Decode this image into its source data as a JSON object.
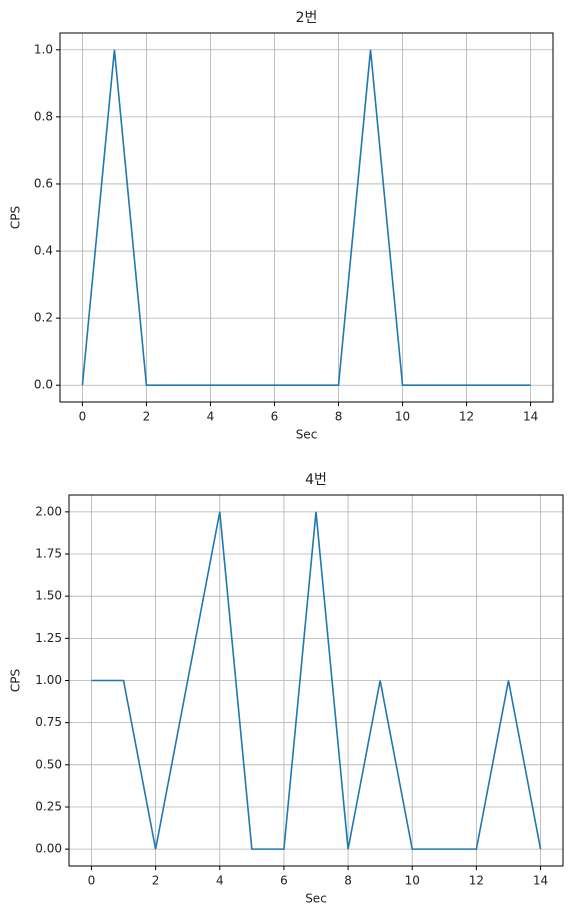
{
  "chart_data": [
    {
      "type": "line",
      "title": "2번",
      "x_label": "Sec",
      "y_label": "CPS",
      "x": [
        0,
        1,
        2,
        3,
        4,
        5,
        6,
        7,
        8,
        9,
        10,
        11,
        12,
        13,
        14
      ],
      "values": [
        0,
        1,
        0,
        0,
        0,
        0,
        0,
        0,
        0,
        1,
        0,
        0,
        0,
        0,
        0
      ],
      "color": "#1f77b4",
      "xlim": [
        -0.7,
        14.7
      ],
      "xticks": [
        0,
        2,
        4,
        6,
        8,
        10,
        12,
        14
      ],
      "ylim": [
        -0.05,
        1.05
      ],
      "yticks": [
        {
          "value": 0,
          "label": "0.0"
        },
        0.2,
        0.4,
        0.6,
        0.8,
        {
          "value": 1,
          "label": "1.0"
        }
      ],
      "grid": true
    },
    {
      "type": "line",
      "title": "4번",
      "x_label": "Sec",
      "y_label": "CPS",
      "x": [
        0,
        1,
        2,
        3,
        4,
        5,
        6,
        7,
        8,
        9,
        10,
        11,
        12,
        13,
        14
      ],
      "values": [
        1,
        1,
        0,
        1,
        2,
        0,
        0,
        2,
        0,
        1,
        0,
        0,
        0,
        1,
        0
      ],
      "color": "#1f77b4",
      "xlim": [
        -0.7,
        14.7
      ],
      "xticks": [
        0,
        2,
        4,
        6,
        8,
        10,
        12,
        14
      ],
      "ylim": [
        -0.1,
        2.1
      ],
      "yticks": [
        {
          "value": 0,
          "label": "0.00"
        },
        0.25,
        {
          "value": 0.5,
          "label": "0.50"
        },
        0.75,
        {
          "value": 1,
          "label": "1.00"
        },
        1.25,
        {
          "value": 1.5,
          "label": "1.50"
        },
        1.75,
        {
          "value": 2,
          "label": "2.00"
        }
      ],
      "grid": true
    }
  ]
}
